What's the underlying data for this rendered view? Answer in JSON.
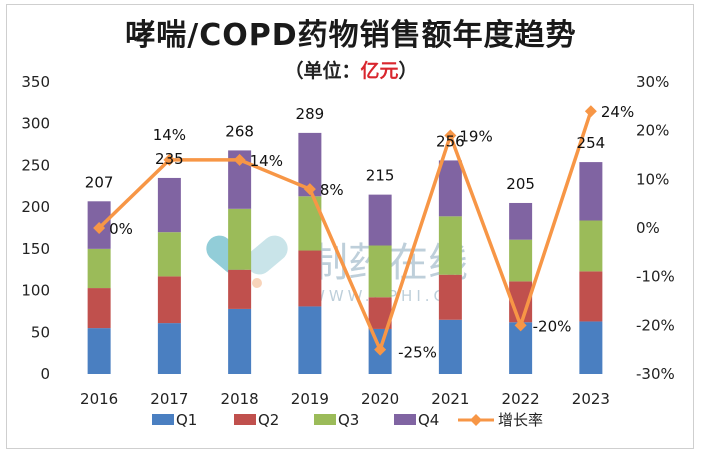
{
  "title": "哮喘/COPD药物销售额年度趋势",
  "subtitle": {
    "prefix": "（单位：",
    "unit": "亿元",
    "suffix": "）"
  },
  "watermark": {
    "text": "制药在线",
    "url": "WWW.CPHI.CN"
  },
  "colors": {
    "Q1": "#4a7fc1",
    "Q2": "#c0504d",
    "Q3": "#9bbb59",
    "Q4": "#8064a2",
    "growth": "#f79646"
  },
  "chart_data": {
    "type": "bar",
    "stacked": true,
    "categories": [
      "2016",
      "2017",
      "2018",
      "2019",
      "2020",
      "2021",
      "2022",
      "2023"
    ],
    "series": [
      {
        "name": "Q1",
        "values": [
          55,
          61,
          78,
          81,
          54,
          65,
          62,
          63
        ]
      },
      {
        "name": "Q2",
        "values": [
          48,
          56,
          47,
          67,
          38,
          54,
          49,
          60
        ]
      },
      {
        "name": "Q3",
        "values": [
          47,
          53,
          73,
          65,
          62,
          70,
          50,
          61
        ]
      },
      {
        "name": "Q4",
        "values": [
          57,
          65,
          70,
          76,
          61,
          67,
          44,
          70
        ]
      }
    ],
    "totals": [
      207,
      235,
      268,
      289,
      215,
      256,
      205,
      254
    ],
    "total_labels": [
      "207",
      "235",
      "268",
      "289",
      "215",
      "256",
      "205",
      "254"
    ],
    "line": {
      "name": "增长率",
      "values": [
        0,
        14,
        14,
        8,
        -25,
        19,
        -20,
        24
      ],
      "labels": [
        "0%",
        "14%",
        "14%",
        "8%",
        "-25%",
        "19%",
        "-20%",
        "24%"
      ]
    },
    "y_left": {
      "min": 0,
      "max": 350,
      "ticks": [
        "0",
        "50",
        "100",
        "150",
        "200",
        "250",
        "300",
        "350"
      ]
    },
    "y_right": {
      "min": -30,
      "max": 30,
      "ticks": [
        "-30%",
        "-20%",
        "-10%",
        "0%",
        "10%",
        "20%",
        "30%"
      ]
    },
    "legend": [
      "Q1",
      "Q2",
      "Q3",
      "Q4",
      "增长率"
    ],
    "legend_position": "bottom",
    "grid": false
  }
}
